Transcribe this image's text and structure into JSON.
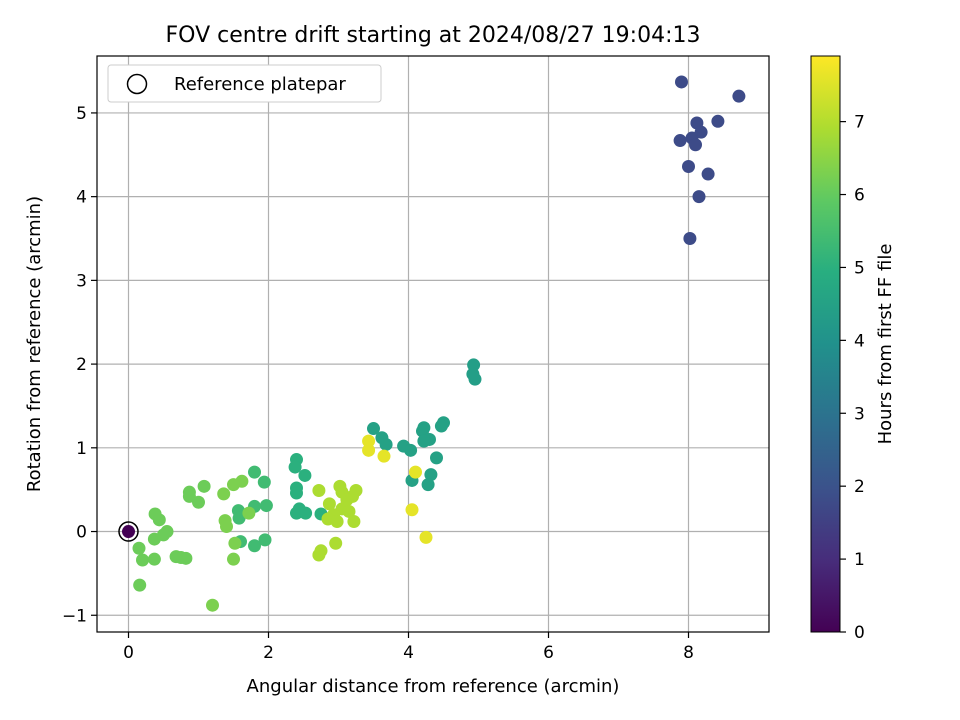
{
  "chart_data": {
    "type": "scatter",
    "title": "FOV centre drift starting at 2024/08/27 19:04:13",
    "xlabel": "Angular distance from reference (arcmin)",
    "ylabel": "Rotation from reference (arcmin)",
    "xlim": [
      -0.45,
      9.15
    ],
    "ylim": [
      -1.2,
      5.68
    ],
    "xticks": [
      0,
      2,
      4,
      6,
      8
    ],
    "yticks": [
      -1,
      0,
      1,
      2,
      3,
      4,
      5
    ],
    "grid": true,
    "legend": {
      "label": "Reference platepar",
      "location": "upper-left"
    },
    "reference_point": {
      "x": 0,
      "y": 0
    },
    "colorbar": {
      "label": "Hours from first FF file",
      "min": 0,
      "max": 7.9,
      "ticks": [
        0,
        1,
        2,
        3,
        4,
        5,
        6,
        7
      ],
      "colormap": "viridis"
    },
    "points": [
      {
        "x": 0.0,
        "y": 0.0,
        "c": 0.0
      },
      {
        "x": 7.9,
        "y": 5.37,
        "c": 1.8
      },
      {
        "x": 8.72,
        "y": 5.2,
        "c": 1.8
      },
      {
        "x": 8.12,
        "y": 4.88,
        "c": 1.8
      },
      {
        "x": 8.42,
        "y": 4.9,
        "c": 1.8
      },
      {
        "x": 8.18,
        "y": 4.77,
        "c": 1.8
      },
      {
        "x": 8.05,
        "y": 4.7,
        "c": 1.8
      },
      {
        "x": 7.88,
        "y": 4.67,
        "c": 1.8
      },
      {
        "x": 8.1,
        "y": 4.62,
        "c": 1.8
      },
      {
        "x": 8.0,
        "y": 4.36,
        "c": 1.8
      },
      {
        "x": 8.28,
        "y": 4.27,
        "c": 1.8
      },
      {
        "x": 8.15,
        "y": 4.0,
        "c": 1.8
      },
      {
        "x": 8.02,
        "y": 3.5,
        "c": 1.8
      },
      {
        "x": 4.93,
        "y": 1.99,
        "c": 4.4
      },
      {
        "x": 4.92,
        "y": 1.88,
        "c": 4.4
      },
      {
        "x": 4.95,
        "y": 1.82,
        "c": 4.4
      },
      {
        "x": 3.5,
        "y": 1.23,
        "c": 4.5
      },
      {
        "x": 4.5,
        "y": 1.3,
        "c": 4.5
      },
      {
        "x": 4.47,
        "y": 1.26,
        "c": 4.5
      },
      {
        "x": 4.22,
        "y": 1.24,
        "c": 4.5
      },
      {
        "x": 4.2,
        "y": 1.2,
        "c": 4.5
      },
      {
        "x": 3.62,
        "y": 1.12,
        "c": 4.5
      },
      {
        "x": 4.3,
        "y": 1.1,
        "c": 4.5
      },
      {
        "x": 4.22,
        "y": 1.08,
        "c": 4.5
      },
      {
        "x": 3.68,
        "y": 1.04,
        "c": 4.5
      },
      {
        "x": 3.93,
        "y": 1.02,
        "c": 4.5
      },
      {
        "x": 4.03,
        "y": 0.97,
        "c": 4.5
      },
      {
        "x": 4.4,
        "y": 0.88,
        "c": 4.5
      },
      {
        "x": 4.32,
        "y": 0.68,
        "c": 4.5
      },
      {
        "x": 4.05,
        "y": 0.61,
        "c": 4.5
      },
      {
        "x": 4.28,
        "y": 0.56,
        "c": 4.5
      },
      {
        "x": 3.43,
        "y": 1.08,
        "c": 7.6
      },
      {
        "x": 3.43,
        "y": 0.97,
        "c": 7.6
      },
      {
        "x": 3.65,
        "y": 0.9,
        "c": 7.6
      },
      {
        "x": 4.1,
        "y": 0.71,
        "c": 7.6
      },
      {
        "x": 4.05,
        "y": 0.26,
        "c": 7.6
      },
      {
        "x": 4.25,
        "y": -0.07,
        "c": 7.6
      },
      {
        "x": 2.4,
        "y": 0.86,
        "c": 5.0
      },
      {
        "x": 2.38,
        "y": 0.77,
        "c": 5.0
      },
      {
        "x": 2.52,
        "y": 0.67,
        "c": 5.0
      },
      {
        "x": 2.4,
        "y": 0.52,
        "c": 5.0
      },
      {
        "x": 2.4,
        "y": 0.46,
        "c": 5.0
      },
      {
        "x": 2.44,
        "y": 0.27,
        "c": 5.0
      },
      {
        "x": 2.4,
        "y": 0.22,
        "c": 5.0
      },
      {
        "x": 2.53,
        "y": 0.22,
        "c": 5.0
      },
      {
        "x": 2.75,
        "y": 0.21,
        "c": 5.0
      },
      {
        "x": 2.72,
        "y": 0.49,
        "c": 6.9
      },
      {
        "x": 3.02,
        "y": 0.54,
        "c": 6.9
      },
      {
        "x": 3.25,
        "y": 0.49,
        "c": 6.9
      },
      {
        "x": 3.05,
        "y": 0.47,
        "c": 6.9
      },
      {
        "x": 3.2,
        "y": 0.42,
        "c": 6.9
      },
      {
        "x": 3.12,
        "y": 0.38,
        "c": 6.9
      },
      {
        "x": 2.87,
        "y": 0.33,
        "c": 6.9
      },
      {
        "x": 3.05,
        "y": 0.27,
        "c": 6.9
      },
      {
        "x": 3.15,
        "y": 0.24,
        "c": 6.9
      },
      {
        "x": 2.93,
        "y": 0.2,
        "c": 6.9
      },
      {
        "x": 2.85,
        "y": 0.15,
        "c": 6.9
      },
      {
        "x": 2.98,
        "y": 0.12,
        "c": 6.9
      },
      {
        "x": 3.22,
        "y": 0.12,
        "c": 6.9
      },
      {
        "x": 2.96,
        "y": -0.14,
        "c": 6.9
      },
      {
        "x": 2.75,
        "y": -0.23,
        "c": 6.9
      },
      {
        "x": 2.72,
        "y": -0.28,
        "c": 6.9
      },
      {
        "x": 1.8,
        "y": 0.71,
        "c": 5.4
      },
      {
        "x": 1.94,
        "y": 0.59,
        "c": 5.4
      },
      {
        "x": 1.97,
        "y": 0.31,
        "c": 5.4
      },
      {
        "x": 1.57,
        "y": 0.25,
        "c": 5.4
      },
      {
        "x": 1.8,
        "y": 0.3,
        "c": 5.4
      },
      {
        "x": 1.58,
        "y": 0.16,
        "c": 5.4
      },
      {
        "x": 1.6,
        "y": -0.12,
        "c": 5.4
      },
      {
        "x": 1.8,
        "y": -0.17,
        "c": 5.4
      },
      {
        "x": 1.95,
        "y": -0.1,
        "c": 5.4
      },
      {
        "x": 1.62,
        "y": 0.6,
        "c": 6.3
      },
      {
        "x": 1.5,
        "y": 0.56,
        "c": 6.3
      },
      {
        "x": 1.36,
        "y": 0.45,
        "c": 6.3
      },
      {
        "x": 1.72,
        "y": 0.22,
        "c": 6.3
      },
      {
        "x": 1.38,
        "y": 0.13,
        "c": 6.3
      },
      {
        "x": 1.4,
        "y": 0.06,
        "c": 6.3
      },
      {
        "x": 1.52,
        "y": -0.14,
        "c": 6.3
      },
      {
        "x": 1.5,
        "y": -0.33,
        "c": 6.3
      },
      {
        "x": 1.2,
        "y": -0.88,
        "c": 6.3
      },
      {
        "x": 1.08,
        "y": 0.54,
        "c": 6.1
      },
      {
        "x": 0.87,
        "y": 0.47,
        "c": 6.1
      },
      {
        "x": 0.87,
        "y": 0.42,
        "c": 6.1
      },
      {
        "x": 1.0,
        "y": 0.35,
        "c": 6.1
      },
      {
        "x": 0.38,
        "y": 0.21,
        "c": 6.1
      },
      {
        "x": 0.44,
        "y": 0.14,
        "c": 6.1
      },
      {
        "x": 0.55,
        "y": 0.0,
        "c": 6.1
      },
      {
        "x": 0.5,
        "y": -0.04,
        "c": 6.1
      },
      {
        "x": 0.37,
        "y": -0.09,
        "c": 6.1
      },
      {
        "x": 0.15,
        "y": -0.2,
        "c": 6.1
      },
      {
        "x": 0.68,
        "y": -0.3,
        "c": 6.1
      },
      {
        "x": 0.75,
        "y": -0.31,
        "c": 6.1
      },
      {
        "x": 0.82,
        "y": -0.32,
        "c": 6.1
      },
      {
        "x": 0.2,
        "y": -0.34,
        "c": 6.1
      },
      {
        "x": 0.37,
        "y": -0.33,
        "c": 6.1
      },
      {
        "x": 0.16,
        "y": -0.64,
        "c": 6.1
      }
    ]
  }
}
